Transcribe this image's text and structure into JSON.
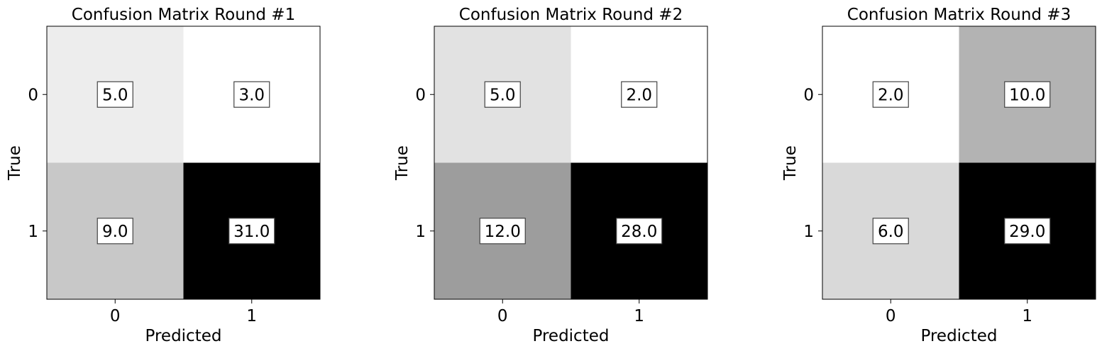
{
  "chart_data": [
    {
      "type": "heatmap",
      "title": "Confusion Matrix Round #1",
      "xlabel": "Predicted",
      "ylabel": "True",
      "x_categories": [
        "0",
        "1"
      ],
      "y_categories": [
        "0",
        "1"
      ],
      "values": [
        [
          5,
          3
        ],
        [
          9,
          31
        ]
      ],
      "value_labels": [
        [
          "5.0",
          "3.0"
        ],
        [
          "9.0",
          "31.0"
        ]
      ],
      "colormap": "Greys",
      "grid": false
    },
    {
      "type": "heatmap",
      "title": "Confusion Matrix Round #2",
      "xlabel": "Predicted",
      "ylabel": "True",
      "x_categories": [
        "0",
        "1"
      ],
      "y_categories": [
        "0",
        "1"
      ],
      "values": [
        [
          5,
          2
        ],
        [
          12,
          28
        ]
      ],
      "value_labels": [
        [
          "5.0",
          "2.0"
        ],
        [
          "12.0",
          "28.0"
        ]
      ],
      "colormap": "Greys",
      "grid": false
    },
    {
      "type": "heatmap",
      "title": "Confusion Matrix Round #3",
      "xlabel": "Predicted",
      "ylabel": "True",
      "x_categories": [
        "0",
        "1"
      ],
      "y_categories": [
        "0",
        "1"
      ],
      "values": [
        [
          2,
          10
        ],
        [
          6,
          29
        ]
      ],
      "value_labels": [
        [
          "2.0",
          "10.0"
        ],
        [
          "6.0",
          "29.0"
        ]
      ],
      "colormap": "Greys",
      "grid": false
    }
  ]
}
